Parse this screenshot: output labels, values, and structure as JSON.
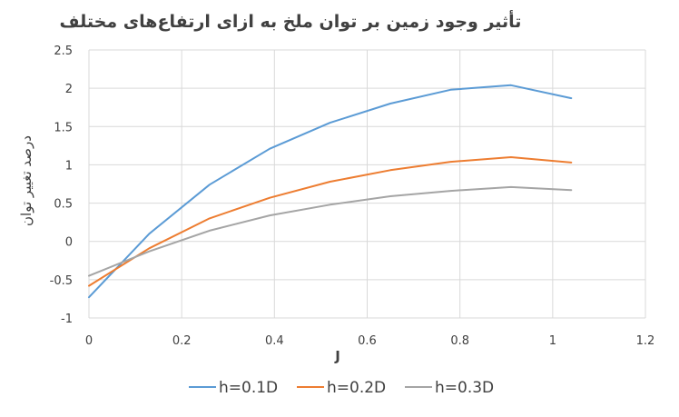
{
  "chart_data": {
    "type": "line",
    "title": "تأثیر وجود زمین بر توان ملخ به ازای ارتفاع‌های مختلف",
    "xlabel": "J",
    "ylabel": "درصد  تغییر توان",
    "xlim": [
      0,
      1.2
    ],
    "ylim": [
      -1,
      2.5
    ],
    "xticks": [
      0,
      0.2,
      0.4,
      0.6,
      0.8,
      1,
      1.2
    ],
    "yticks": [
      -1,
      -0.5,
      0,
      0.5,
      1,
      1.5,
      2,
      2.5
    ],
    "xtick_labels": [
      "0",
      "0.2",
      "0.4",
      "0.6",
      "0.8",
      "1",
      "1.2"
    ],
    "ytick_labels": [
      "-1",
      "-0.5",
      "0",
      "0.5",
      "1",
      "1.5",
      "2",
      "2.5"
    ],
    "grid": true,
    "legend_position": "bottom",
    "series": [
      {
        "name": "h=0.1D",
        "color": "#5b9bd5",
        "x": [
          0,
          0.13,
          0.26,
          0.39,
          0.52,
          0.65,
          0.78,
          0.91,
          1.04
        ],
        "y": [
          -0.73,
          0.1,
          0.74,
          1.21,
          1.55,
          1.8,
          1.98,
          2.04,
          1.87
        ]
      },
      {
        "name": "h=0.2D",
        "color": "#ed7d31",
        "x": [
          0,
          0.13,
          0.26,
          0.39,
          0.52,
          0.65,
          0.78,
          0.91,
          1.04
        ],
        "y": [
          -0.58,
          -0.09,
          0.3,
          0.57,
          0.78,
          0.93,
          1.04,
          1.1,
          1.03
        ]
      },
      {
        "name": "h=0.3D",
        "color": "#a5a5a5",
        "x": [
          0,
          0.13,
          0.26,
          0.39,
          0.52,
          0.65,
          0.78,
          0.91,
          1.04
        ],
        "y": [
          -0.45,
          -0.13,
          0.14,
          0.34,
          0.48,
          0.59,
          0.66,
          0.71,
          0.67
        ]
      }
    ]
  }
}
